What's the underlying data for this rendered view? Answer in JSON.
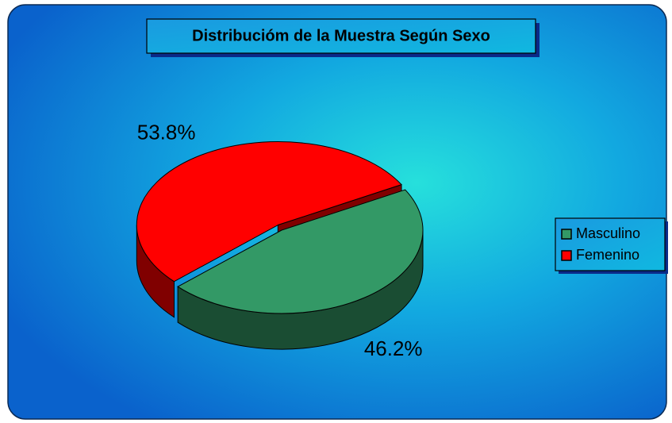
{
  "chart_data": {
    "type": "pie",
    "title": "Distribucióm de la Muestra Según Sexo",
    "categories": [
      "Masculino",
      "Femenino"
    ],
    "values": [
      46.2,
      53.8
    ],
    "value_labels": [
      "46.2%",
      "53.8%"
    ],
    "colors": [
      "#339966",
      "#ff0000"
    ],
    "legend": "right"
  }
}
